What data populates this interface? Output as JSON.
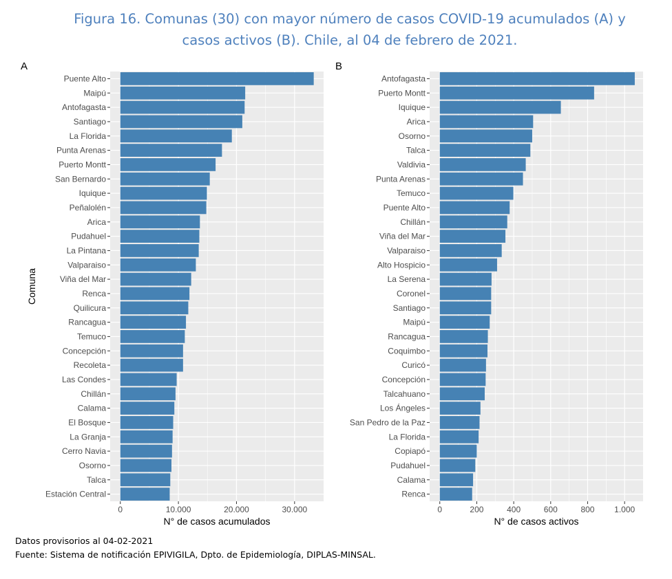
{
  "title_line1": "Figura 16. Comunas (30) con mayor número de casos COVID-19 acumulados (A) y",
  "title_line2": "casos activos (B). Chile, al 04 de febrero de 2021.",
  "footnote1": "Datos provisorios al 04-02-2021",
  "footnote2": "Fuente: Sistema de notificación EPIVIGILA, Dpto. de Epidemiología, DIPLAS-MINSAL.",
  "colors": {
    "bar": "#4682b4",
    "panel_bg": "#ebebeb",
    "grid": "#ffffff",
    "title": "#4f81bd"
  },
  "chart_data": [
    {
      "type": "bar",
      "orientation": "horizontal",
      "panel": "A",
      "xlabel": "N° de casos acumulados",
      "ylabel": "Comuna",
      "xlim": [
        0,
        35000
      ],
      "xticks": [
        0,
        10000,
        20000,
        30000
      ],
      "xtick_labels": [
        "0",
        "10.000",
        "20.000",
        "30.000"
      ],
      "grid": true,
      "categories": [
        "Puente Alto",
        "Maipú",
        "Antofagasta",
        "Santiago",
        "La Florida",
        "Punta Arenas",
        "Puerto Montt",
        "San Bernardo",
        "Iquique",
        "Peñalolén",
        "Arica",
        "Pudahuel",
        "La Pintana",
        "Valparaiso",
        "Viña del Mar",
        "Renca",
        "Quilicura",
        "Rancagua",
        "Temuco",
        "Concepción",
        "Recoleta",
        "Las Condes",
        "Chillán",
        "Calama",
        "El Bosque",
        "La Granja",
        "Cerro Navia",
        "Osorno",
        "Talca",
        "Estación Central"
      ],
      "values": [
        33300,
        21500,
        21400,
        21000,
        19200,
        17500,
        16400,
        15400,
        14900,
        14800,
        13700,
        13600,
        13500,
        13000,
        12200,
        11900,
        11700,
        11300,
        11100,
        10800,
        10800,
        9700,
        9500,
        9300,
        9100,
        9000,
        8900,
        8800,
        8600,
        8500
      ]
    },
    {
      "type": "bar",
      "orientation": "horizontal",
      "panel": "B",
      "xlabel": "N° de casos activos",
      "ylabel": "",
      "xlim": [
        0,
        1100
      ],
      "xticks": [
        0,
        200,
        400,
        600,
        800,
        1000
      ],
      "xtick_labels": [
        "0",
        "200",
        "400",
        "600",
        "800",
        "1.000"
      ],
      "grid": true,
      "categories": [
        "Antofagasta",
        "Puerto Montt",
        "Iquique",
        "Arica",
        "Osorno",
        "Talca",
        "Valdivia",
        "Punta Arenas",
        "Temuco",
        "Puente Alto",
        "Chillán",
        "Viña del Mar",
        "Valparaiso",
        "Alto Hospicio",
        "La Serena",
        "Coronel",
        "Santiago",
        "Maipú",
        "Rancagua",
        "Coquimbo",
        "Curicó",
        "Concepción",
        "Talcahuano",
        "Los Ángeles",
        "San Pedro de la Paz",
        "La Florida",
        "Copiapó",
        "Pudahuel",
        "Calama",
        "Renca"
      ],
      "values": [
        1055,
        835,
        655,
        505,
        500,
        490,
        465,
        450,
        398,
        378,
        365,
        355,
        335,
        310,
        280,
        278,
        278,
        270,
        260,
        258,
        250,
        248,
        243,
        220,
        215,
        210,
        200,
        192,
        180,
        175
      ]
    }
  ]
}
